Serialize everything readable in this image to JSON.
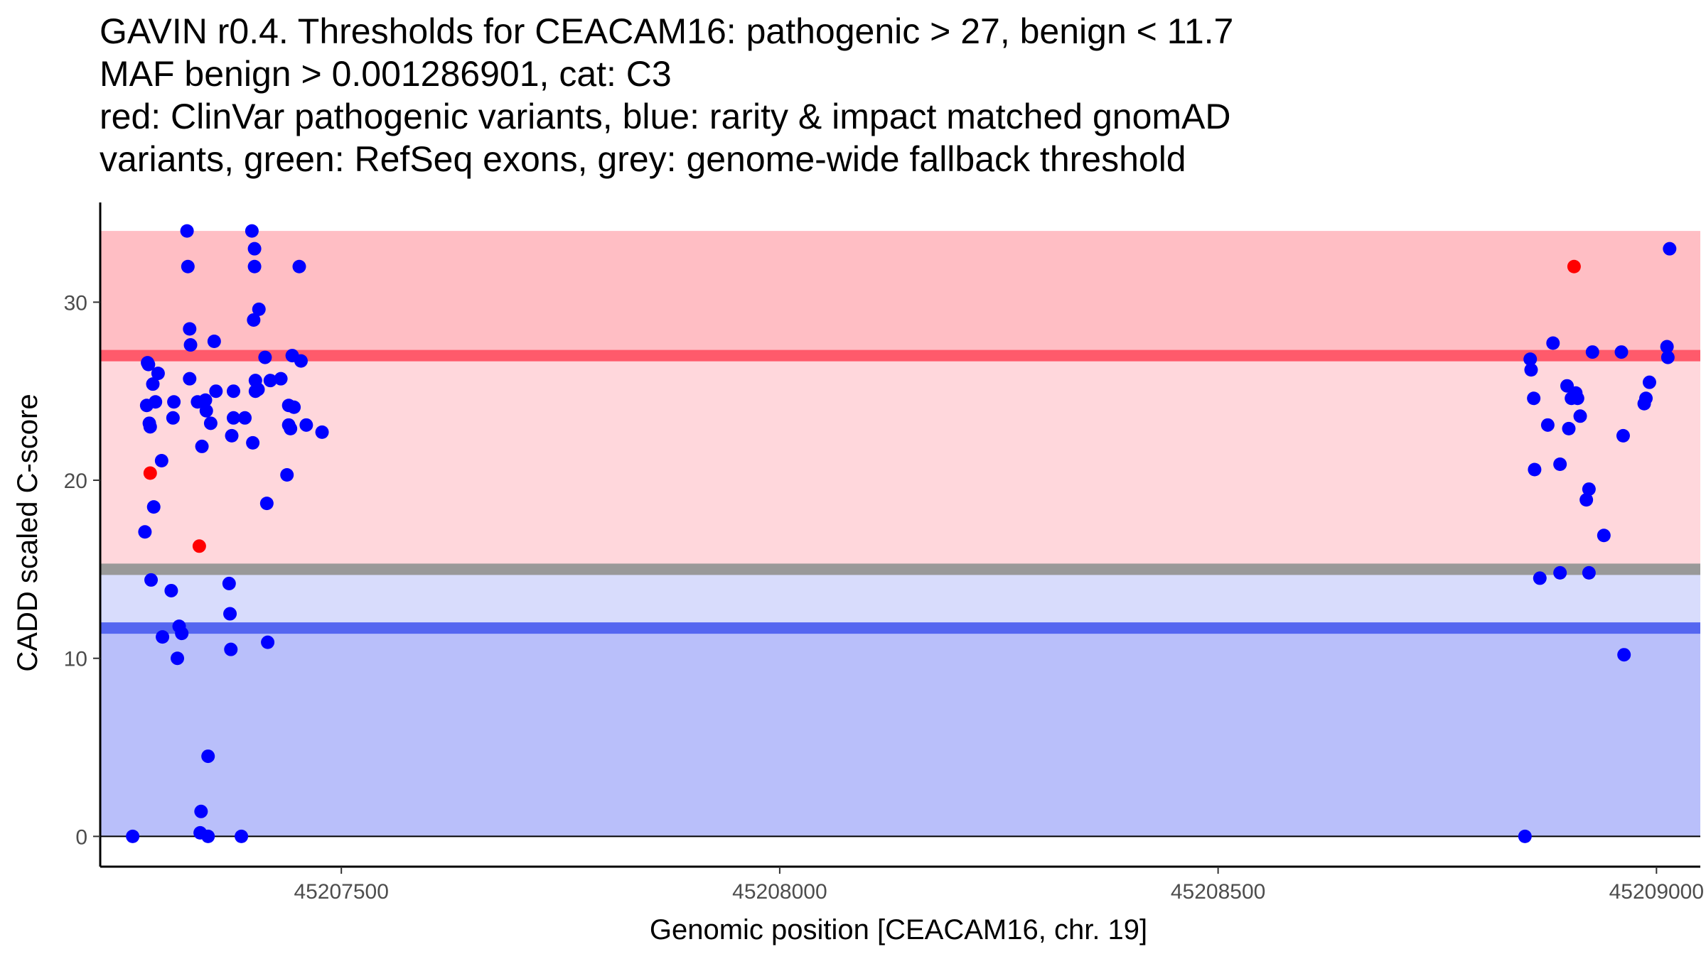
{
  "chart_data": {
    "type": "scatter",
    "title_lines": [
      "GAVIN r0.4. Thresholds for CEACAM16: pathogenic > 27, benign < 11.7",
      "MAF benign > 0.001286901, cat: C3",
      "red: ClinVar pathogenic variants, blue: rarity & impact matched gnomAD",
      "variants, green: RefSeq exons, grey: genome-wide fallback threshold"
    ],
    "xlabel": "Genomic position [CEACAM16, chr. 19]",
    "ylabel": "CADD scaled C-score",
    "xlim": [
      45207225,
      45209050
    ],
    "ylim": [
      -1.7,
      35.6
    ],
    "x_ticks": [
      45207500,
      45208000,
      45208500,
      45209000
    ],
    "x_tick_labels": [
      "45207500",
      "45208000",
      "45208500",
      "45209000"
    ],
    "y_ticks": [
      0,
      10,
      20,
      30
    ],
    "y_tick_labels": [
      "0",
      "10",
      "20",
      "30"
    ],
    "regions": [
      {
        "name": "pathogenic-region-above-threshold",
        "y0": 27,
        "y1": 34,
        "color": "#ffbec4"
      },
      {
        "name": "pathogenic-region-below-threshold",
        "y0": 15,
        "y1": 27,
        "color": "#ffd7dc"
      },
      {
        "name": "benign-region-above-threshold",
        "y0": 11.7,
        "y1": 15,
        "color": "#d8dcfc"
      },
      {
        "name": "benign-region-below-threshold",
        "y0": 0,
        "y1": 11.7,
        "color": "#b9bffa"
      }
    ],
    "threshold_lines": [
      {
        "name": "pathogenic-threshold-line",
        "y": 27,
        "color": "#ff5a6b"
      },
      {
        "name": "fallback-threshold-line",
        "y": 15,
        "color": "#999999"
      },
      {
        "name": "benign-threshold-line",
        "y": 11.7,
        "color": "#5566f0"
      }
    ],
    "series": [
      {
        "name": "gnomAD matched variants",
        "color": "#0000ff",
        "points": [
          [
            45207262,
            0
          ],
          [
            45207276,
            17.1
          ],
          [
            45207278,
            24.2
          ],
          [
            45207279,
            26.6
          ],
          [
            45207280,
            26.5
          ],
          [
            45207281,
            23.2
          ],
          [
            45207282,
            23
          ],
          [
            45207283,
            14.4
          ],
          [
            45207285,
            25.4
          ],
          [
            45207286,
            18.5
          ],
          [
            45207288,
            24.4
          ],
          [
            45207291,
            26
          ],
          [
            45207295,
            21.1
          ],
          [
            45207296,
            11.2
          ],
          [
            45207306,
            13.8
          ],
          [
            45207308,
            23.5
          ],
          [
            45207309,
            24.4
          ],
          [
            45207313,
            10
          ],
          [
            45207315,
            11.8
          ],
          [
            45207318,
            11.4
          ],
          [
            45207324,
            34
          ],
          [
            45207325,
            32
          ],
          [
            45207327,
            28.5
          ],
          [
            45207327,
            25.7
          ],
          [
            45207328,
            27.6
          ],
          [
            45207336,
            24.4
          ],
          [
            45207339,
            0.2
          ],
          [
            45207340,
            1.4
          ],
          [
            45207341,
            21.9
          ],
          [
            45207345,
            24.5
          ],
          [
            45207346,
            23.9
          ],
          [
            45207348,
            0
          ],
          [
            45207348,
            4.5
          ],
          [
            45207351,
            23.2
          ],
          [
            45207355,
            27.8
          ],
          [
            45207357,
            25
          ],
          [
            45207372,
            14.2
          ],
          [
            45207373,
            12.5
          ],
          [
            45207374,
            10.5
          ],
          [
            45207375,
            22.5
          ],
          [
            45207377,
            25
          ],
          [
            45207377,
            23.5
          ],
          [
            45207386,
            0
          ],
          [
            45207390,
            23.5
          ],
          [
            45207398,
            34
          ],
          [
            45207399,
            22.1
          ],
          [
            45207400,
            29
          ],
          [
            45207401,
            33
          ],
          [
            45207401,
            32
          ],
          [
            45207402,
            25
          ],
          [
            45207402,
            25.6
          ],
          [
            45207405,
            25.1
          ],
          [
            45207406,
            29.6
          ],
          [
            45207413,
            26.9
          ],
          [
            45207415,
            18.7
          ],
          [
            45207416,
            10.9
          ],
          [
            45207419,
            25.6
          ],
          [
            45207431,
            25.7
          ],
          [
            45207438,
            20.3
          ],
          [
            45207440,
            23.1
          ],
          [
            45207440,
            24.2
          ],
          [
            45207442,
            22.9
          ],
          [
            45207444,
            27
          ],
          [
            45207446,
            24.1
          ],
          [
            45207452,
            32
          ],
          [
            45207454,
            26.7
          ],
          [
            45207460,
            23.1
          ],
          [
            45207478,
            22.7
          ],
          [
            45208850,
            0
          ],
          [
            45208856,
            26.8
          ],
          [
            45208857,
            26.2
          ],
          [
            45208860,
            24.6
          ],
          [
            45208861,
            20.6
          ],
          [
            45208867,
            14.5
          ],
          [
            45208876,
            23.1
          ],
          [
            45208882,
            27.7
          ],
          [
            45208890,
            20.9
          ],
          [
            45208890,
            14.8
          ],
          [
            45208898,
            25.3
          ],
          [
            45208900,
            22.9
          ],
          [
            45208903,
            24.6
          ],
          [
            45208908,
            24.9
          ],
          [
            45208910,
            24.6
          ],
          [
            45208913,
            23.6
          ],
          [
            45208920,
            18.9
          ],
          [
            45208923,
            19.5
          ],
          [
            45208923,
            14.8
          ],
          [
            45208927,
            27.2
          ],
          [
            45208940,
            16.9
          ],
          [
            45208960,
            27.2
          ],
          [
            45208962,
            22.5
          ],
          [
            45208963,
            10.2
          ],
          [
            45208986,
            24.3
          ],
          [
            45208988,
            24.6
          ],
          [
            45208992,
            25.5
          ],
          [
            45209012,
            27.5
          ],
          [
            45209013,
            26.9
          ],
          [
            45209015,
            33
          ]
        ]
      },
      {
        "name": "ClinVar pathogenic variants",
        "color": "#ff0000",
        "points": [
          [
            45207282,
            20.4
          ],
          [
            45207338,
            16.3
          ],
          [
            45208906,
            32
          ]
        ]
      }
    ]
  }
}
